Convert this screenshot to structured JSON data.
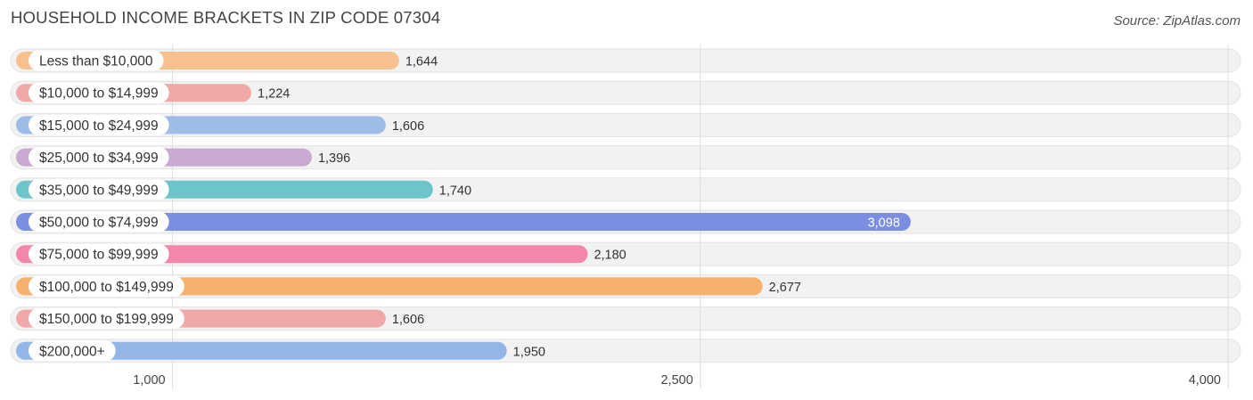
{
  "chart_data": {
    "type": "bar",
    "orientation": "horizontal",
    "title": "HOUSEHOLD INCOME BRACKETS IN ZIP CODE 07304",
    "source": "Source: ZipAtlas.com",
    "categories": [
      "Less than $10,000",
      "$10,000 to $14,999",
      "$15,000 to $24,999",
      "$25,000 to $34,999",
      "$35,000 to $49,999",
      "$50,000 to $74,999",
      "$75,000 to $99,999",
      "$100,000 to $149,999",
      "$150,000 to $199,999",
      "$200,000+"
    ],
    "values": [
      1644,
      1224,
      1606,
      1396,
      1740,
      3098,
      2180,
      2677,
      1606,
      1950
    ],
    "value_labels": [
      "1,644",
      "1,224",
      "1,606",
      "1,396",
      "1,740",
      "3,098",
      "2,180",
      "2,677",
      "1,606",
      "1,950"
    ],
    "colors": [
      "#f9c08f",
      "#f0a9a8",
      "#9dbde6",
      "#c9a8d2",
      "#6dc4cb",
      "#7b8ee0",
      "#f487a9",
      "#f8b06e",
      "#f0a9a8",
      "#92b7e6"
    ],
    "highlighted_index": 5,
    "xticks": [
      1000,
      2500,
      4000
    ],
    "xtick_labels": [
      "1,000",
      "2,500",
      "4,000"
    ],
    "xlim": [
      540,
      4000
    ],
    "grid": true
  }
}
